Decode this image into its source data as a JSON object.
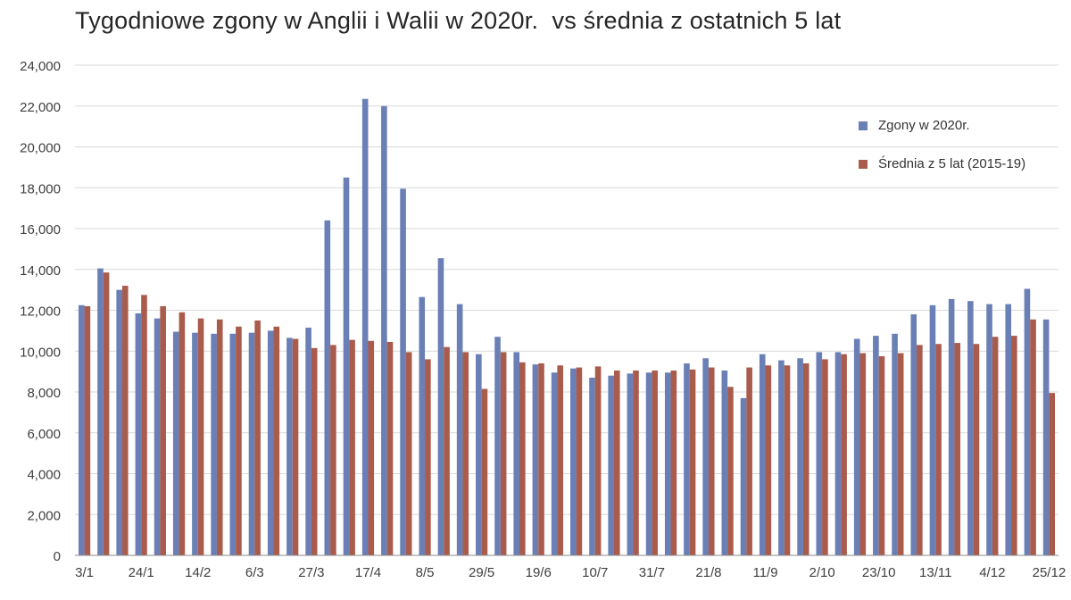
{
  "chart_data": {
    "type": "bar",
    "title": "Tygodniowe zgony w Anglii i Walii w 2020r.  vs średnia z ostatnich 5 lat",
    "xlabel": "",
    "ylabel": "",
    "ylim": [
      0,
      24000
    ],
    "yticks": [
      0,
      2000,
      4000,
      6000,
      8000,
      10000,
      12000,
      14000,
      16000,
      18000,
      20000,
      22000,
      24000
    ],
    "ytick_labels": [
      "0",
      "2,000",
      "4,000",
      "6,000",
      "8,000",
      "10,000",
      "12,000",
      "14,000",
      "16,000",
      "18,000",
      "20,000",
      "22,000",
      "24,000"
    ],
    "categories": [
      "3/1",
      "10/1",
      "17/1",
      "24/1",
      "31/1",
      "7/2",
      "14/2",
      "21/2",
      "28/2",
      "6/3",
      "13/3",
      "20/3",
      "27/3",
      "3/4",
      "10/4",
      "17/4",
      "24/4",
      "1/5",
      "8/5",
      "15/5",
      "22/5",
      "29/5",
      "5/6",
      "12/6",
      "19/6",
      "26/6",
      "3/7",
      "10/7",
      "17/7",
      "24/7",
      "31/7",
      "7/8",
      "14/8",
      "21/8",
      "28/8",
      "4/9",
      "11/9",
      "18/9",
      "25/9",
      "2/10",
      "9/10",
      "16/10",
      "23/10",
      "30/10",
      "6/11",
      "13/11",
      "20/11",
      "27/11",
      "4/12",
      "11/12",
      "18/12",
      "25/12"
    ],
    "tick_labels": [
      "3/1",
      "24/1",
      "14/2",
      "6/3",
      "27/3",
      "17/4",
      "8/5",
      "29/5",
      "19/6",
      "10/7",
      "31/7",
      "21/8",
      "11/9",
      "2/10",
      "23/10",
      "13/11",
      "4/12",
      "25/12"
    ],
    "series": [
      {
        "name": "Zgony w 2020r.",
        "color": "#6a7fb5",
        "values": [
          12250,
          14050,
          13000,
          11850,
          11600,
          10950,
          10900,
          10850,
          10850,
          10900,
          11000,
          10650,
          11150,
          16400,
          18500,
          22350,
          22000,
          17950,
          12650,
          14550,
          12300,
          9850,
          10700,
          9950,
          9350,
          8950,
          9150,
          8700,
          8800,
          8900,
          8950,
          8950,
          9400,
          9650,
          9050,
          7700,
          9850,
          9550,
          9650,
          9950,
          9950,
          10600,
          10750,
          10850,
          11800,
          12250,
          12550,
          12450,
          12300,
          12300,
          13050,
          11550
        ]
      },
      {
        "name": "Średnia z 5 lat (2015-19)",
        "color": "#a95b4c",
        "values": [
          12200,
          13850,
          13200,
          12750,
          12200,
          11900,
          11600,
          11550,
          11200,
          11500,
          11200,
          10600,
          10150,
          10300,
          10550,
          10500,
          10450,
          9950,
          9600,
          10200,
          9950,
          8150,
          9950,
          9450,
          9400,
          9300,
          9200,
          9250,
          9050,
          9050,
          9050,
          9050,
          9100,
          9200,
          8250,
          9200,
          9300,
          9300,
          9400,
          9600,
          9850,
          9900,
          9750,
          9900,
          10300,
          10350,
          10400,
          10350,
          10700,
          10750,
          11550,
          7950
        ]
      }
    ],
    "legend_position": "right",
    "grid": true
  }
}
